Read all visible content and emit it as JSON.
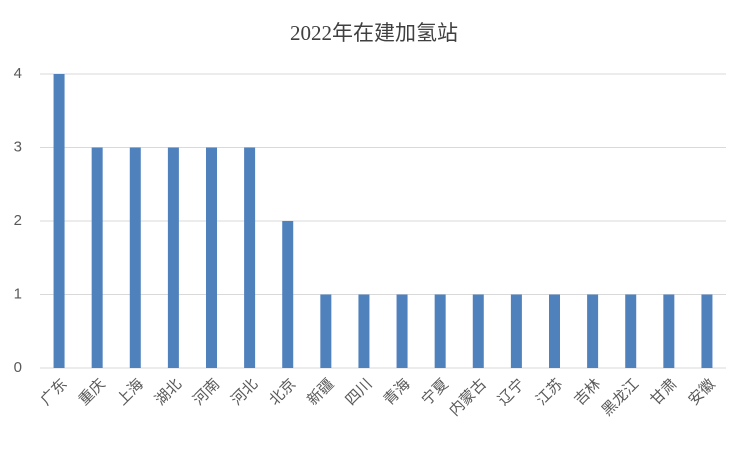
{
  "chart_data": {
    "type": "bar",
    "title": "2022年在建加氢站",
    "categories": [
      "广东",
      "重庆",
      "上海",
      "湖北",
      "河南",
      "河北",
      "北京",
      "新疆",
      "四川",
      "青海",
      "宁夏",
      "内蒙古",
      "辽宁",
      "江苏",
      "吉林",
      "黑龙江",
      "甘肃",
      "安徽"
    ],
    "values": [
      4,
      3,
      3,
      3,
      3,
      3,
      2,
      1,
      1,
      1,
      1,
      1,
      1,
      1,
      1,
      1,
      1,
      1
    ],
    "color": "#4f81bd",
    "ylim": [
      0,
      4
    ],
    "yticks": [
      0,
      1,
      2,
      3,
      4
    ],
    "grid": true
  }
}
